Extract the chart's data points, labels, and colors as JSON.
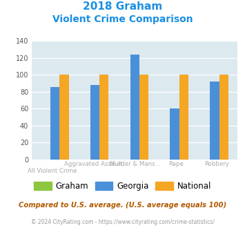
{
  "title_line1": "2018 Graham",
  "title_line2": "Violent Crime Comparison",
  "categories": [
    "All Violent Crime",
    "Aggravated Assault",
    "Murder & Mans...",
    "Rape",
    "Robbery"
  ],
  "label_top": [
    "",
    "Aggravated Assault",
    "Murder & Mans...",
    "Rape",
    "Robbery"
  ],
  "label_bot": [
    "All Violent Crime",
    "",
    "",
    "",
    ""
  ],
  "graham_values": [
    0,
    0,
    0,
    0,
    0
  ],
  "georgia_values": [
    86,
    88,
    124,
    60,
    92
  ],
  "national_values": [
    100,
    100,
    100,
    100,
    100
  ],
  "graham_color": "#8dc63f",
  "georgia_color": "#4a90d9",
  "national_color": "#f5a623",
  "bg_color": "#dce9ef",
  "ylim": [
    0,
    140
  ],
  "yticks": [
    0,
    20,
    40,
    60,
    80,
    100,
    120,
    140
  ],
  "title_color": "#1a8fe3",
  "label_color": "#aaaaaa",
  "footer_text": "Compared to U.S. average. (U.S. average equals 100)",
  "copyright_text": "© 2024 CityRating.com - https://www.cityrating.com/crime-statistics/",
  "footer_color": "#b05a00",
  "copyright_color": "#999999"
}
